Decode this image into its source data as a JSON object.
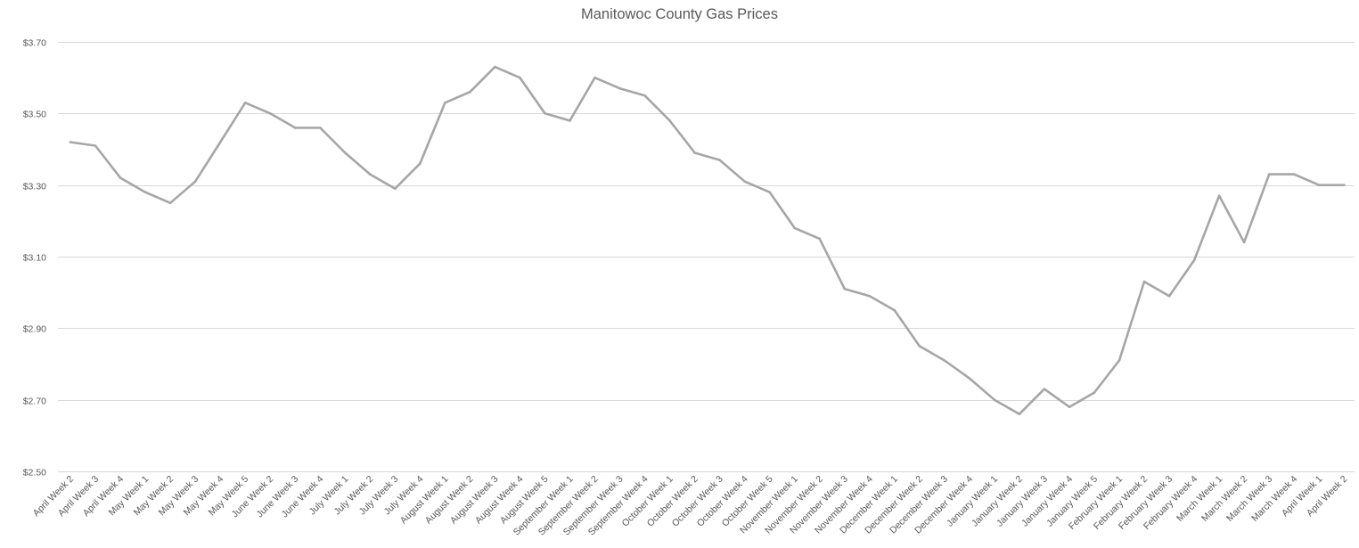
{
  "chart_data": {
    "type": "line",
    "title": "Manitowoc County Gas Prices",
    "xlabel": "",
    "ylabel": "",
    "ylim": [
      2.5,
      3.7
    ],
    "yticks": [
      2.5,
      2.7,
      2.9,
      3.1,
      3.3,
      3.5,
      3.7
    ],
    "ytick_labels": [
      "$2.50",
      "$2.70",
      "$2.90",
      "$3.10",
      "$3.30",
      "$3.50",
      "$3.70"
    ],
    "grid": true,
    "legend": "none",
    "line_color": "#a6a6a6",
    "grid_color": "#d9d9d9",
    "categories": [
      "April Week 2",
      "April Week 3",
      "April Week 4",
      "May Week 1",
      "May Week 2",
      "May Week 3",
      "May Week 4",
      "May Week 5",
      "June Week 2",
      "June Week 3",
      "June Week 4",
      "July Week 1",
      "July Week 2",
      "July Week 3",
      "July Week 4",
      "August Week 1",
      "August Week 2",
      "August Week 3",
      "August Week 4",
      "August Week 5",
      "September Week 1",
      "September Week 2",
      "September Week 3",
      "September Week 4",
      "October Week 1",
      "October Week 2",
      "October Week 3",
      "October Week 4",
      "October Week 5",
      "November Week 1",
      "November Week 2",
      "November Week 3",
      "November Week 4",
      "December Week 1",
      "December Week 2",
      "December Week 3",
      "December Week 4",
      "January Week 1",
      "January Week 2",
      "January Week 3",
      "January Week 4",
      "January Week 5",
      "February Week 1",
      "February Week 2",
      "February Week 3",
      "February Week 4",
      "March Week 1",
      "March Week 2",
      "March Week 3",
      "March Week 4",
      "April Week 1",
      "April Week 2"
    ],
    "values": [
      3.42,
      3.41,
      3.32,
      3.28,
      3.25,
      3.31,
      3.42,
      3.53,
      3.5,
      3.46,
      3.46,
      3.39,
      3.33,
      3.29,
      3.36,
      3.53,
      3.56,
      3.63,
      3.6,
      3.5,
      3.48,
      3.6,
      3.57,
      3.55,
      3.48,
      3.39,
      3.37,
      3.31,
      3.28,
      3.18,
      3.15,
      3.01,
      2.99,
      2.95,
      2.85,
      2.81,
      2.76,
      2.7,
      2.66,
      2.73,
      2.68,
      2.72,
      2.81,
      3.03,
      2.99,
      3.09,
      3.27,
      3.14,
      3.33,
      3.33,
      3.3,
      3.3
    ]
  }
}
